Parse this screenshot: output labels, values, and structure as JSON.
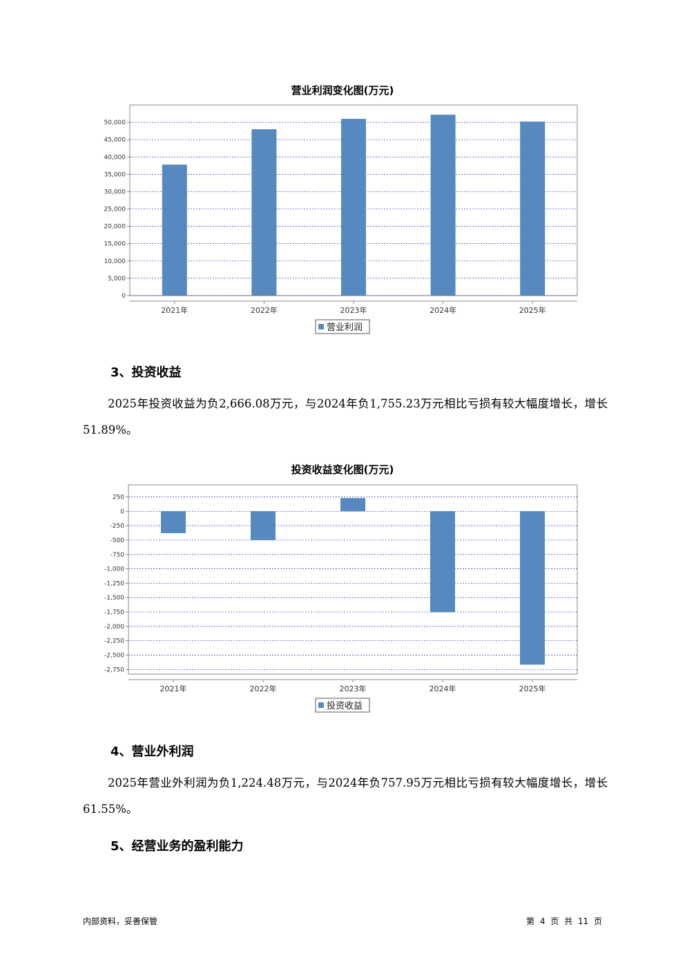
{
  "charts": [
    {
      "title": "营业利润变化图(万元)",
      "legend": "营业利润",
      "chart_data": {
        "type": "bar",
        "categories": [
          "2021年",
          "2022年",
          "2023年",
          "2024年",
          "2025年"
        ],
        "values": [
          37800,
          48000,
          51000,
          52200,
          50200
        ],
        "yticks": [
          "0",
          "5,000",
          "10,000",
          "15,000",
          "20,000",
          "25,000",
          "30,000",
          "35,000",
          "40,000",
          "45,000",
          "50,000"
        ],
        "ylim": [
          0,
          55000
        ],
        "grid": true,
        "legend_position": "bottom"
      }
    },
    {
      "title": "投资收益变化图(万元)",
      "legend": "投资收益",
      "chart_data": {
        "type": "bar",
        "categories": [
          "2021年",
          "2022年",
          "2023年",
          "2024年",
          "2025年"
        ],
        "values": [
          -380,
          -500,
          230,
          -1755.23,
          -2666.08
        ],
        "yticks": [
          "250",
          "0",
          "-250",
          "-500",
          "-750",
          "-1,000",
          "-1,250",
          "-1,500",
          "-1,750",
          "-2,000",
          "-2,250",
          "-2,500",
          "-2,750"
        ],
        "ylim": [
          -2830,
          460
        ],
        "grid": true,
        "legend_position": "bottom"
      }
    }
  ],
  "sections": [
    {
      "heading": "3、投资收益",
      "paragraph": "2025年投资收益为负2,666.08万元，与2024年负1,755.23万元相比亏损有较大幅度增长，增长51.89%。"
    },
    {
      "heading": "4、营业外利润",
      "paragraph": "2025年营业外利润为负1,224.48万元，与2024年负757.95万元相比亏损有较大幅度增长，增长61.55%。"
    },
    {
      "heading": "5、经营业务的盈利能力"
    }
  ],
  "footer": {
    "left": "内部资料，妥善保管",
    "right": "第 4 页   共 11 页"
  },
  "colors": {
    "bar": "#5589bf",
    "grid": "#3333aa"
  }
}
